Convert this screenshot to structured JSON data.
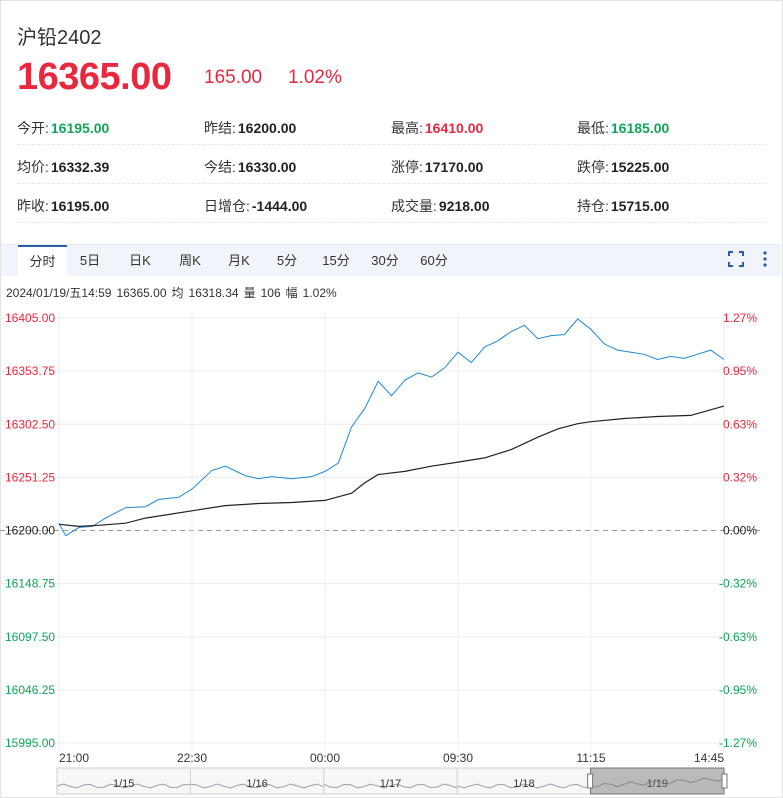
{
  "header": {
    "title": "沪铅2402",
    "price": "16365.00",
    "change": "165.00",
    "change_pct": "1.02%"
  },
  "stats": [
    [
      {
        "label": "今开:",
        "value": "16195.00",
        "dir": "down"
      },
      {
        "label": "昨结:",
        "value": "16200.00",
        "dir": ""
      },
      {
        "label": "最高:",
        "value": "16410.00",
        "dir": "up"
      },
      {
        "label": "最低:",
        "value": "16185.00",
        "dir": "down"
      }
    ],
    [
      {
        "label": "均价:",
        "value": "16332.39",
        "dir": ""
      },
      {
        "label": "今结:",
        "value": "16330.00",
        "dir": ""
      },
      {
        "label": "涨停:",
        "value": "17170.00",
        "dir": ""
      },
      {
        "label": "跌停:",
        "value": "15225.00",
        "dir": ""
      }
    ],
    [
      {
        "label": "昨收:",
        "value": "16195.00",
        "dir": ""
      },
      {
        "label": "日增仓:",
        "value": "-1444.00",
        "dir": ""
      },
      {
        "label": "成交量:",
        "value": "9218.00",
        "dir": ""
      },
      {
        "label": "持仓:",
        "value": "15715.00",
        "dir": ""
      }
    ]
  ],
  "tabs": [
    "分时",
    "5日",
    "日K",
    "周K",
    "月K",
    "5分",
    "15分",
    "30分",
    "60分"
  ],
  "active_tab": "分时",
  "icons": {
    "expand": "expand-icon",
    "more": "more-vertical-icon"
  },
  "info_line": {
    "time": "2024/01/19/五14:59",
    "price": "16365.00",
    "avg_label": "均",
    "avg": "16318.34",
    "vol_label": "量",
    "vol": "106",
    "amp_label": "幅",
    "amp": "1.02%"
  },
  "colors": {
    "up": "#e8283e",
    "down": "#10a35b",
    "price_line": "#1e88d4",
    "avg_line": "#222222",
    "accent": "#2a5caa"
  },
  "chart_data": {
    "type": "line",
    "baseline": 16200.0,
    "ylim": [
      15995.0,
      16405.0
    ],
    "yticks": [
      "16405.00",
      "16353.75",
      "16302.50",
      "16251.25",
      "16200.00",
      "16148.75",
      "16097.50",
      "16046.25",
      "15995.00"
    ],
    "pct_ticks": [
      "1.27%",
      "0.95%",
      "0.63%",
      "0.32%",
      "0.00%",
      "-0.32%",
      "-0.63%",
      "-0.95%",
      "-1.27%"
    ],
    "xticks": [
      "21:00",
      "22:30",
      "00:00",
      "09:30",
      "11:15",
      "14:45"
    ],
    "nav_labels": [
      "1/15",
      "1/16",
      "1/17",
      "1/18",
      "1/19"
    ],
    "grid": true,
    "series": [
      {
        "x": [
          0,
          1,
          3,
          5,
          7,
          10,
          13,
          15,
          18,
          20,
          23,
          25,
          28,
          30,
          32,
          35,
          38,
          40,
          42,
          44,
          46,
          48,
          50,
          52,
          54,
          56,
          58,
          60,
          62,
          64,
          66,
          68,
          70,
          72,
          74,
          76,
          78,
          80,
          82,
          84,
          86,
          88,
          90,
          92,
          94,
          96,
          98,
          100
        ],
        "values": [
          16207,
          16195,
          16203,
          16204,
          16212,
          16222,
          16223,
          16230,
          16232,
          16240,
          16258,
          16262,
          16253,
          16250,
          16252,
          16250,
          16252,
          16257,
          16265,
          16300,
          16318,
          16344,
          16330,
          16345,
          16352,
          16348,
          16357,
          16372,
          16362,
          16377,
          16383,
          16392,
          16398,
          16385,
          16388,
          16389,
          16404,
          16394,
          16380,
          16374,
          16372,
          16370,
          16365,
          16368,
          16366,
          16370,
          16374,
          16365
        ]
      },
      {
        "x": [
          0,
          3,
          6,
          10,
          13,
          16,
          20,
          25,
          30,
          35,
          40,
          44,
          46,
          48,
          52,
          56,
          60,
          64,
          68,
          70,
          72,
          75,
          78,
          80,
          85,
          90,
          95,
          100
        ],
        "values": [
          16206,
          16204,
          16205,
          16207,
          16212,
          16215,
          16219,
          16224,
          16226,
          16227,
          16229,
          16236,
          16246,
          16254,
          16257,
          16262,
          16266,
          16270,
          16278,
          16284,
          16290,
          16298,
          16303,
          16305,
          16308,
          16310,
          16311,
          16320
        ]
      }
    ]
  }
}
